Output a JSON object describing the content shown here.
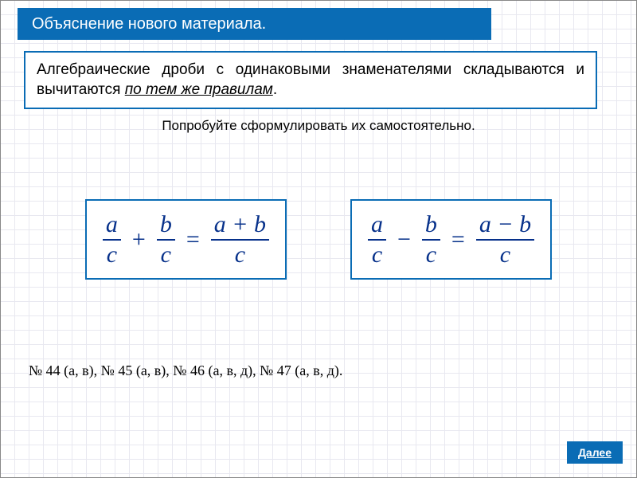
{
  "colors": {
    "accent": "#0a6cb5",
    "formula_text": "#06308a",
    "grid": "#e8e8f0",
    "background": "#ffffff"
  },
  "title": "Объяснение нового материала.",
  "rule": {
    "prefix": "Алгебраические дроби с одинаковыми знаменателями складываются и вычитаются ",
    "emphasis": "по тем же правилам",
    "suffix": "."
  },
  "prompt": "Попробуйте сформулировать их самостоятельно.",
  "formulas": {
    "addition": {
      "f1_num": "a",
      "f1_den": "c",
      "op1": "+",
      "f2_num": "b",
      "f2_den": "c",
      "eq": "=",
      "f3_num": "a + b",
      "f3_den": "c"
    },
    "subtraction": {
      "f1_num": "a",
      "f1_den": "c",
      "op1": "−",
      "f2_num": "b",
      "f2_den": "c",
      "eq": "=",
      "f3_num": "a − b",
      "f3_den": "c"
    }
  },
  "exercises": "№ 44 (а, в), № 45 (а, в), № 46 (а, в, д), № 47 (а, в, д).",
  "next_label": "Далее"
}
